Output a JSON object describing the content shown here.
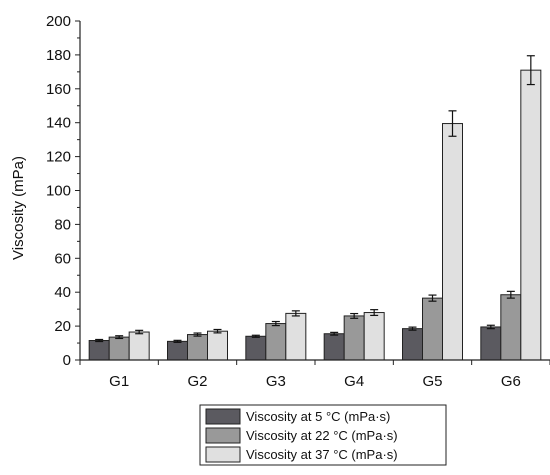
{
  "chart_data": {
    "type": "bar",
    "ylabel": "Viscosity (mPa)",
    "xlabel": "",
    "ylim": [
      0,
      200
    ],
    "yticks": [
      0,
      20,
      40,
      60,
      80,
      100,
      120,
      140,
      160,
      180,
      200
    ],
    "categories": [
      "G1",
      "G2",
      "G3",
      "G4",
      "G5",
      "G6"
    ],
    "legend_placement": "bottom-center",
    "grid": false,
    "series": [
      {
        "name": "Viscosity at 5 °C (mPa·s)",
        "color": "#5b5a60",
        "values": [
          11.5,
          11.0,
          14.0,
          15.5,
          18.5,
          19.5
        ],
        "errors": [
          0.6,
          0.6,
          0.6,
          0.8,
          0.9,
          1.0
        ]
      },
      {
        "name": "Viscosity at 22 °C (mPa·s)",
        "color": "#999999",
        "values": [
          13.5,
          15.0,
          21.5,
          26.0,
          36.5,
          38.5
        ],
        "errors": [
          0.8,
          0.9,
          1.2,
          1.4,
          1.8,
          2.0
        ]
      },
      {
        "name": "Viscosity at 37 °C (mPa·s)",
        "color": "#e0e0e0",
        "values": [
          16.5,
          17.0,
          27.5,
          28.0,
          139.5,
          171.0
        ],
        "errors": [
          1.0,
          1.0,
          1.5,
          1.7,
          7.5,
          8.5
        ]
      }
    ]
  }
}
